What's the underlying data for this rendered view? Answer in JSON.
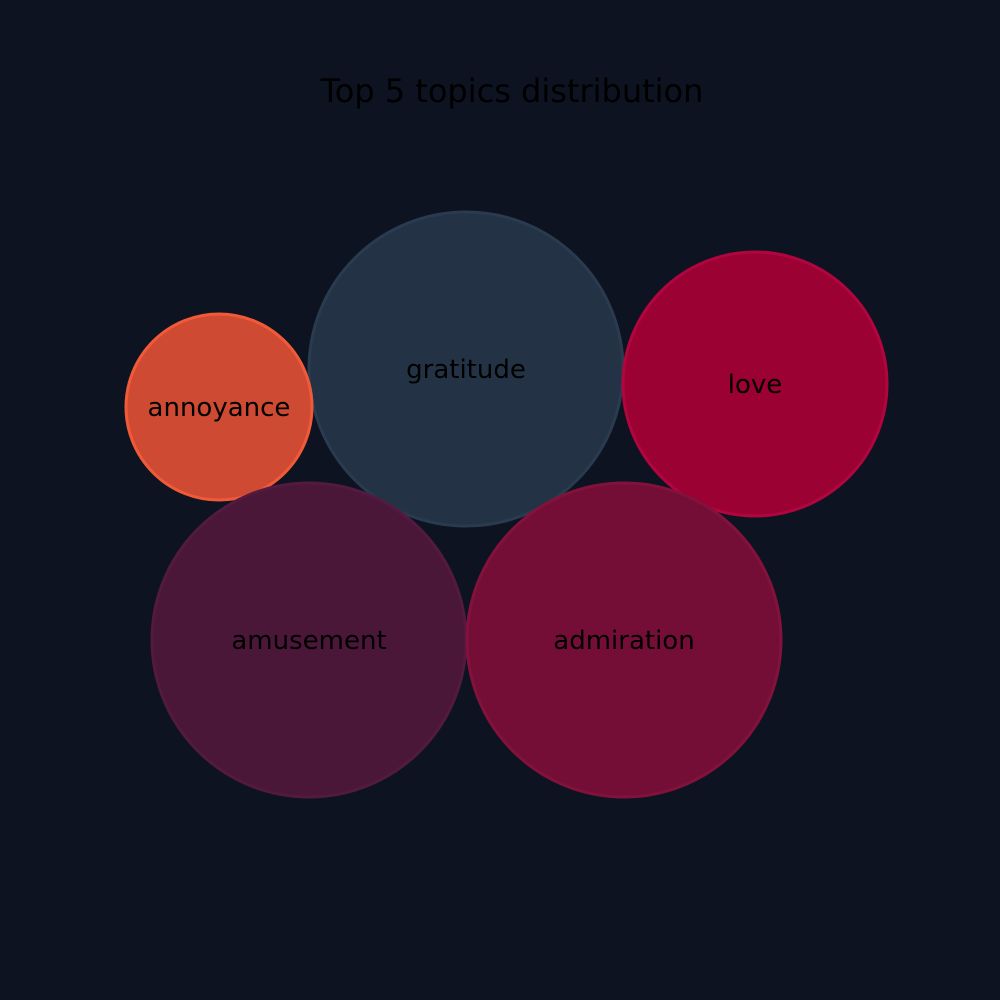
{
  "chart_data": {
    "type": "bubble",
    "title": "Top 5 topics distribution",
    "bubbles": [
      {
        "label": "gratitude",
        "color": "#233345",
        "stroke": "#2b3b4f"
      },
      {
        "label": "love",
        "color": "#9c0133",
        "stroke": "#b1053f"
      },
      {
        "label": "annoyance",
        "color": "#cf4a32",
        "stroke": "#f05a38"
      },
      {
        "label": "amusement",
        "color": "#4a1739",
        "stroke": "#531a40"
      },
      {
        "label": "admiration",
        "color": "#750e36",
        "stroke": "#82123c"
      }
    ]
  }
}
